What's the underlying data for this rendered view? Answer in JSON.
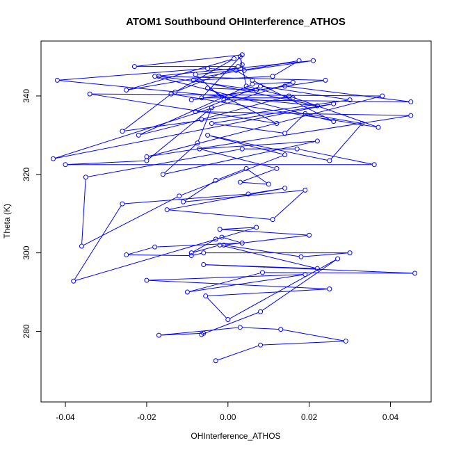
{
  "chart_data": {
    "type": "line",
    "title": "ATOM1 Southbound OHInterference_ATHOS",
    "xlabel": "OHInterference_ATHOS",
    "ylabel": "Theta (K)",
    "xlim": [
      -0.046,
      0.05
    ],
    "ylim": [
      262,
      354
    ],
    "xticks": [
      -0.04,
      -0.02,
      0.0,
      0.02,
      0.04
    ],
    "xtick_labels": [
      "-0.04",
      "-0.02",
      "0.00",
      "0.02",
      "0.04"
    ],
    "yticks": [
      280,
      300,
      320,
      340
    ],
    "ytick_labels": [
      "280",
      "300",
      "320",
      "340"
    ],
    "grid": false,
    "series": [
      {
        "color": "#0000ff",
        "marker": "open-circle",
        "x": [
          -0.003,
          0.008,
          0.029,
          0.013,
          0.003,
          -0.017,
          -0.006,
          -0.0065,
          0.008,
          0.027,
          0.0,
          -0.0055,
          0.025,
          -0.02,
          0.019,
          -0.01,
          0.0085,
          0.046,
          -0.006,
          0.022,
          -0.002,
          -0.009,
          -0.003,
          -0.0015,
          0.0035,
          -0.018,
          -0.025,
          -0.009,
          -0.006,
          0.03,
          0.018,
          -0.001,
          0.02,
          -0.002,
          0.007,
          -0.038,
          -0.026,
          0.005,
          0.014,
          -0.015,
          0.011,
          0.019,
          -0.011,
          -0.003,
          0.0045,
          0.01,
          0.003,
          0.012,
          -0.007,
          0.022,
          -0.016,
          -0.0075,
          -0.004,
          -0.02,
          -0.04,
          0.036,
          0.017,
          0.0035,
          -0.035,
          -0.036,
          -0.012,
          0.014,
          -0.005,
          0.025,
          0.033,
          0.019,
          0.014,
          -0.004,
          0.026,
          -0.043,
          0.016,
          0.006,
          -0.022,
          -0.0065,
          0.015,
          0.037,
          -0.014,
          -0.026,
          0.03,
          0.008,
          -0.008,
          0.045,
          -0.02,
          0.038,
          -0.034,
          0.012,
          -0.005,
          0.007,
          -0.017,
          0.024,
          -0.009,
          0.014,
          0.045,
          -0.001,
          -0.008,
          0.002,
          0.006,
          0.026,
          -0.018,
          0.021,
          0.004,
          -0.005,
          -0.042,
          0.022,
          -0.0085,
          0.011,
          0.0175,
          -0.025,
          0.0015,
          -0.013,
          0.0025,
          -0.023,
          0.0035,
          -0.0065,
          0.016,
          0.0045,
          0.003,
          0.0035
        ],
        "y": [
          272.5,
          276.5,
          277.5,
          280.5,
          281,
          279,
          279.5,
          279.2,
          285,
          298.5,
          283,
          289,
          290.8,
          293,
          294.5,
          290,
          295,
          294.8,
          297,
          296,
          302,
          300,
          303.5,
          304,
          302.5,
          301.5,
          299.5,
          299.3,
          300,
          300,
          299,
          302,
          304.5,
          306,
          306.5,
          292.8,
          312.5,
          315,
          316.5,
          311,
          308.5,
          316,
          313,
          318.5,
          321.5,
          317.5,
          318,
          321.5,
          326.5,
          328.5,
          320,
          328,
          337,
          323.5,
          322.5,
          322.5,
          326.5,
          326.5,
          319.3,
          301.7,
          314.5,
          325,
          330,
          323.5,
          333,
          335.5,
          330.5,
          333,
          338,
          324,
          343.5,
          343,
          330,
          334,
          340,
          332,
          340.5,
          331,
          339,
          342.5,
          336,
          335,
          324.5,
          340,
          340.5,
          333,
          342,
          341.5,
          345,
          344,
          339,
          342.5,
          338.5,
          339,
          345.5,
          346.5,
          344,
          333.5,
          345,
          349,
          346.5,
          347,
          344,
          337.5,
          344,
          345,
          349,
          341.5,
          349.5,
          341,
          347.5,
          347.5,
          350.5,
          339.5,
          339.5,
          342.5,
          350,
          348
        ]
      }
    ]
  }
}
